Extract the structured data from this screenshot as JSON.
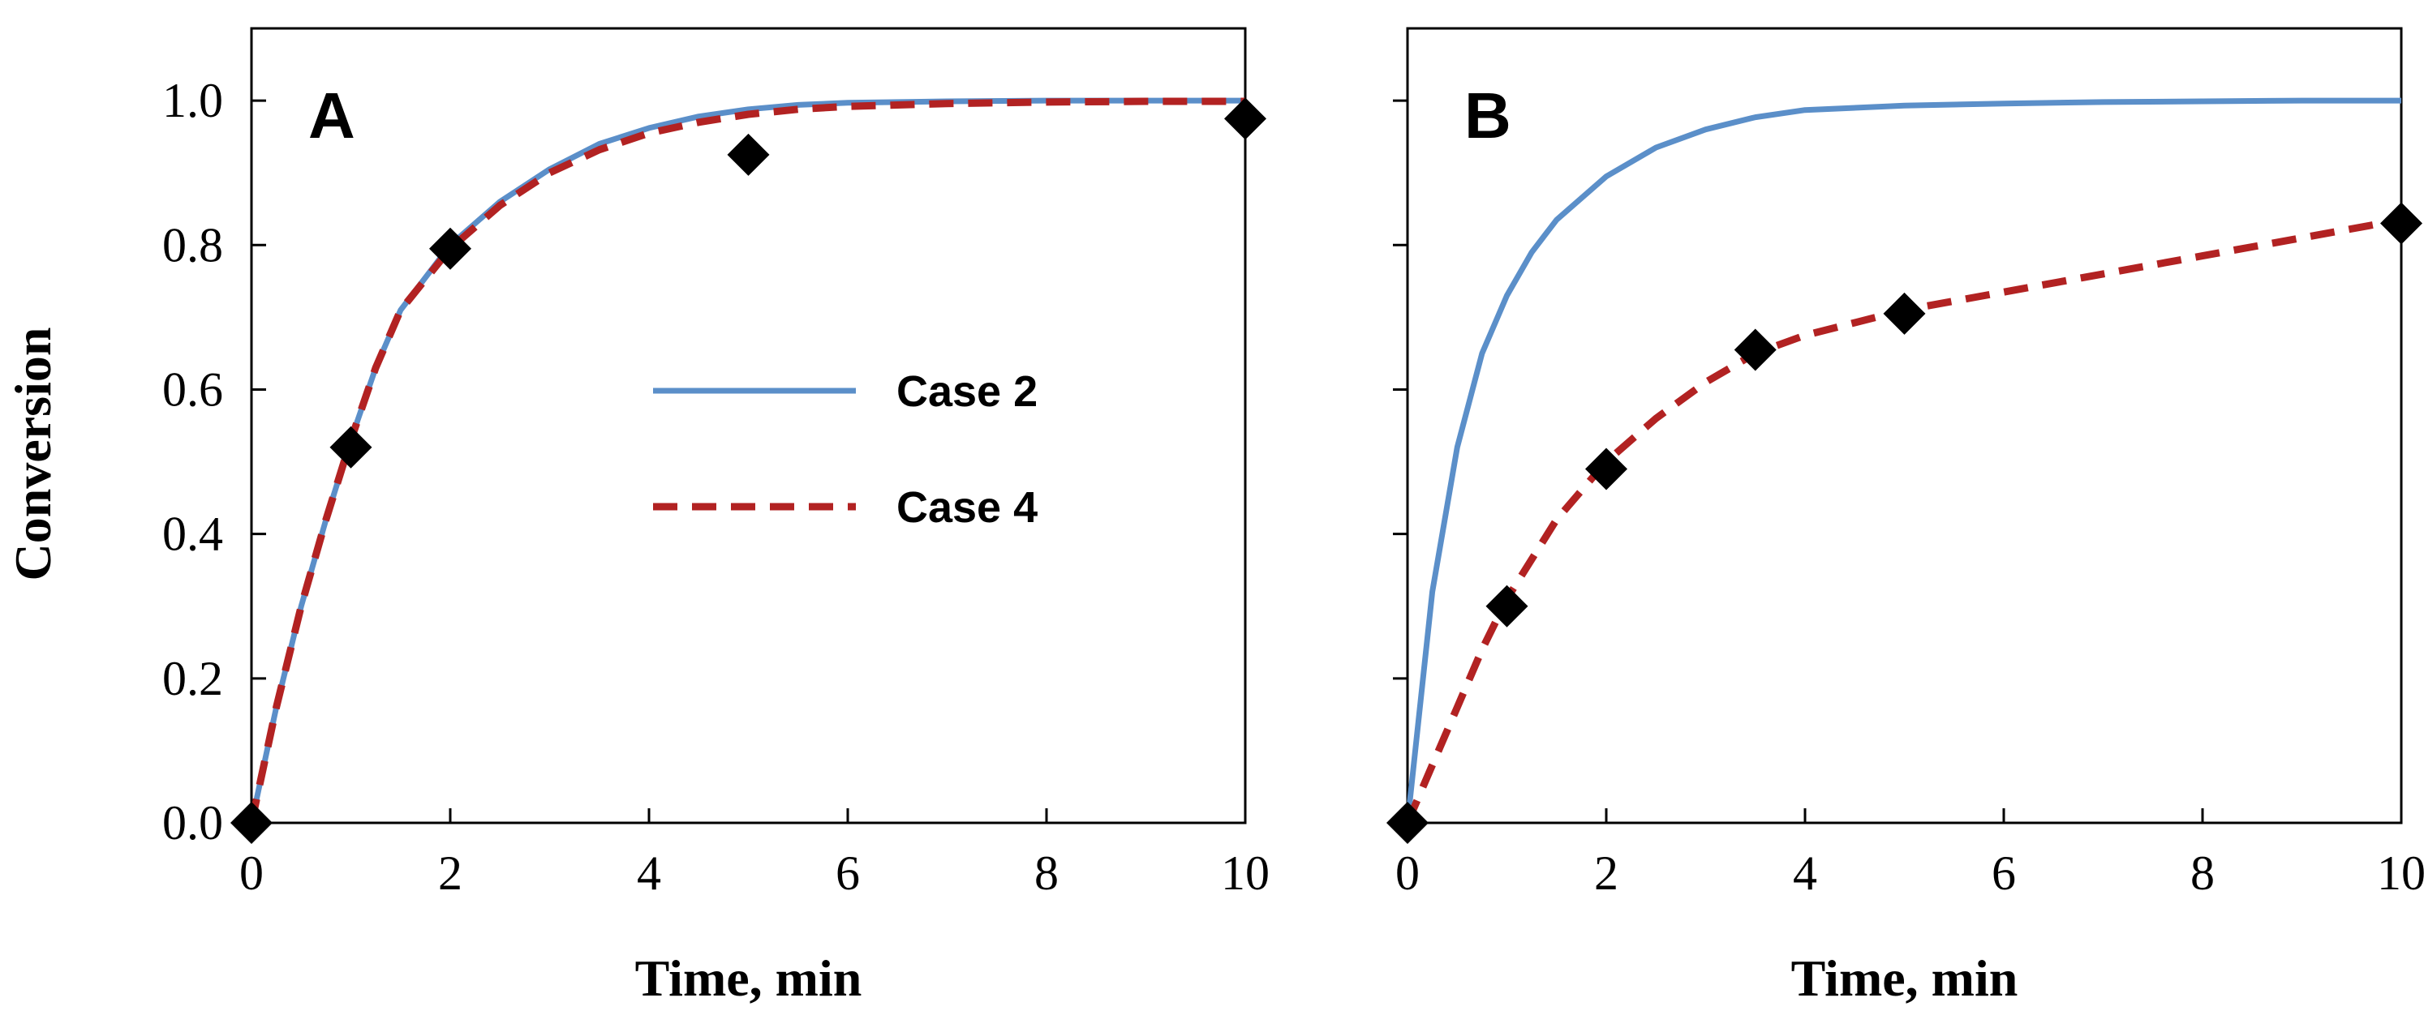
{
  "colors": {
    "case2": "#5b8fc9",
    "case4": "#b22222",
    "markers": "#000000"
  },
  "chart_data": [
    {
      "type": "line",
      "panel": "A",
      "xlabel": "Time, min",
      "ylabel": "Conversion",
      "xlim": [
        0,
        10
      ],
      "ylim": [
        0,
        1.1
      ],
      "x_ticks": [
        "0",
        "2",
        "4",
        "6",
        "8",
        "10"
      ],
      "y_ticks": [
        "0.0",
        "0.2",
        "0.4",
        "0.6",
        "0.8",
        "1.0"
      ],
      "grid": false,
      "legend": {
        "placement": "center",
        "entries": [
          {
            "label": "Case 2",
            "style": "solid"
          },
          {
            "label": "Case 4",
            "style": "dashed"
          }
        ]
      },
      "series": [
        {
          "name": "Case 2",
          "style": "solid",
          "x": [
            0,
            0.25,
            0.5,
            0.75,
            1.0,
            1.25,
            1.5,
            2.0,
            2.5,
            3.0,
            3.5,
            4.0,
            4.5,
            5.0,
            5.5,
            6.0,
            7.0,
            8.0,
            9.0,
            10.0
          ],
          "y": [
            0,
            0.16,
            0.3,
            0.42,
            0.53,
            0.63,
            0.71,
            0.8,
            0.86,
            0.905,
            0.94,
            0.962,
            0.978,
            0.988,
            0.994,
            0.997,
            0.999,
            1.0,
            1.0,
            1.0
          ]
        },
        {
          "name": "Case 4",
          "style": "dashed",
          "x": [
            0,
            0.25,
            0.5,
            0.75,
            1.0,
            1.25,
            1.5,
            2.0,
            2.5,
            3.0,
            3.5,
            4.0,
            4.5,
            5.0,
            5.5,
            6.0,
            7.0,
            8.0,
            9.0,
            10.0
          ],
          "y": [
            0,
            0.16,
            0.3,
            0.42,
            0.53,
            0.63,
            0.71,
            0.795,
            0.855,
            0.9,
            0.932,
            0.955,
            0.97,
            0.981,
            0.988,
            0.992,
            0.996,
            0.998,
            0.999,
            0.999
          ]
        }
      ],
      "markers": {
        "x": [
          0,
          1,
          2,
          5,
          10
        ],
        "y": [
          0,
          0.52,
          0.795,
          0.925,
          0.975
        ]
      }
    },
    {
      "type": "line",
      "panel": "B",
      "xlabel": "Time, min",
      "xlim": [
        0,
        10
      ],
      "ylim": [
        0,
        1.1
      ],
      "x_ticks": [
        "0",
        "2",
        "4",
        "6",
        "8",
        "10"
      ],
      "grid": false,
      "series": [
        {
          "name": "Case 2",
          "style": "solid",
          "x": [
            0,
            0.25,
            0.5,
            0.75,
            1.0,
            1.25,
            1.5,
            2.0,
            2.5,
            3.0,
            3.5,
            4.0,
            5.0,
            6.0,
            7.0,
            8.0,
            9.0,
            10.0
          ],
          "y": [
            0,
            0.32,
            0.52,
            0.65,
            0.73,
            0.79,
            0.835,
            0.895,
            0.935,
            0.96,
            0.977,
            0.987,
            0.993,
            0.996,
            0.998,
            0.999,
            1.0,
            1.0
          ]
        },
        {
          "name": "Case 4",
          "style": "dashed",
          "x": [
            0,
            0.25,
            0.5,
            0.75,
            1.0,
            1.5,
            2.0,
            2.5,
            3.0,
            3.5,
            4.0,
            5.0,
            6.0,
            7.0,
            8.0,
            9.0,
            10.0
          ],
          "y": [
            0,
            0.08,
            0.16,
            0.24,
            0.31,
            0.42,
            0.5,
            0.56,
            0.61,
            0.65,
            0.675,
            0.71,
            0.735,
            0.76,
            0.785,
            0.81,
            0.835
          ]
        }
      ],
      "markers": {
        "x": [
          0,
          1,
          2,
          3.5,
          5,
          10
        ],
        "y": [
          0,
          0.3,
          0.49,
          0.655,
          0.705,
          0.83
        ]
      }
    }
  ]
}
